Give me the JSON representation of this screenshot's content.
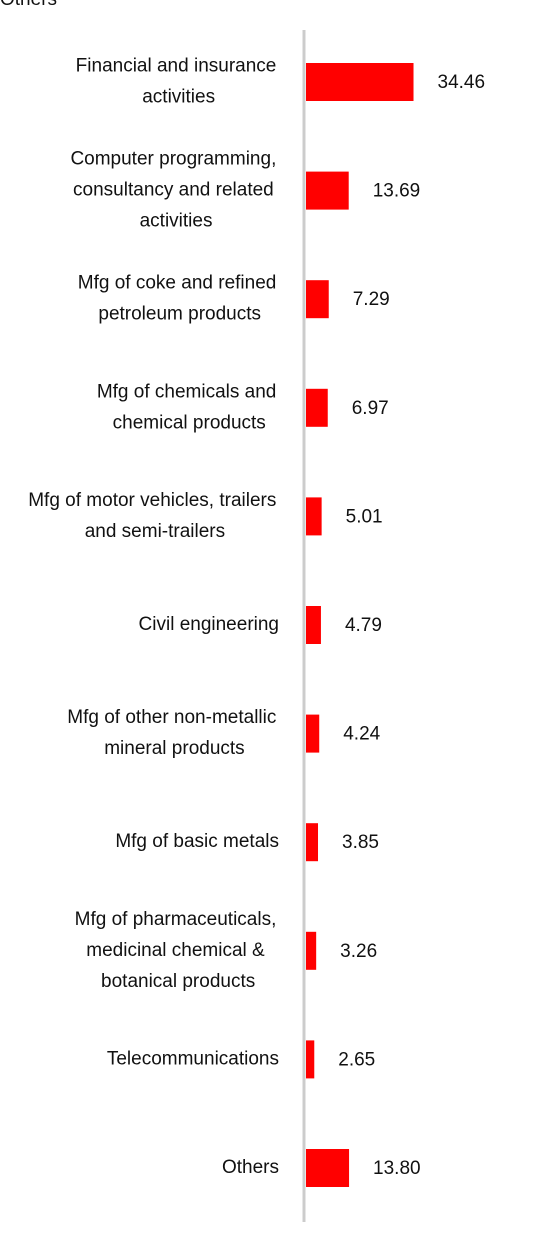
{
  "chart_data": {
    "type": "bar",
    "orientation": "horizontal",
    "categories": [
      "Financial and insurance activities",
      "Computer programming, consultancy and related activities",
      "Mfg of coke and refined petroleum products",
      "Mfg of chemicals and chemical products",
      "Mfg of motor vehicles, trailers and semi-trailers",
      "Civil engineering",
      "Mfg of other non-metallic mineral products",
      "Mfg of basic metals",
      "Mfg of pharmaceuticals, medicinal chemical & botanical products",
      "Telecommunications",
      "Others"
    ],
    "values": [
      34.46,
      13.69,
      7.29,
      6.97,
      5.01,
      4.79,
      4.24,
      3.85,
      3.26,
      2.65,
      13.8
    ],
    "value_labels": [
      "34.46",
      "13.69",
      "7.29",
      "6.97",
      "5.01",
      "4.79",
      "4.24",
      "3.85",
      "3.26",
      "2.65",
      "13.80"
    ],
    "color": "#ff0000"
  }
}
